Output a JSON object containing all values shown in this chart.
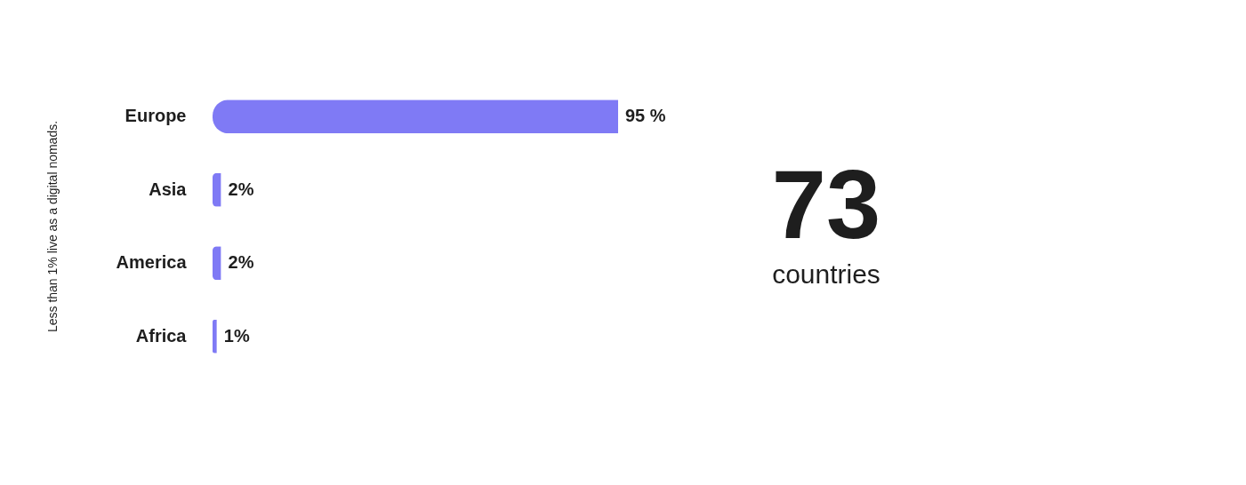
{
  "chart_data": {
    "type": "bar",
    "orientation": "horizontal",
    "categories": [
      "Europe",
      "Asia",
      "America",
      "Africa"
    ],
    "values": [
      95,
      2,
      2,
      1
    ],
    "value_labels": [
      "95 %",
      "2%",
      "2%",
      "1%"
    ],
    "color": "#7f7af5",
    "annotations": [
      "Less than 1% live as a digital nomads.",
      "73",
      "countries"
    ]
  }
}
